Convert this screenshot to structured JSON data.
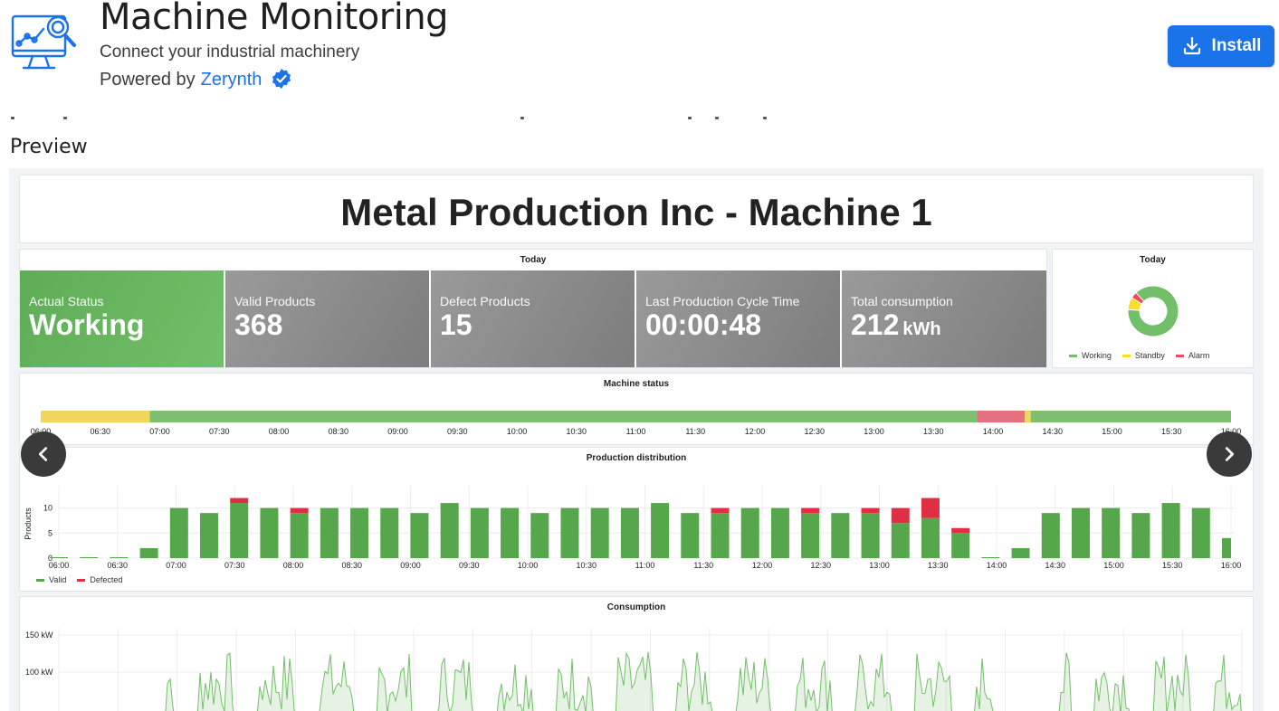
{
  "header": {
    "title": "Machine Monitoring",
    "subtitle": "Connect your industrial machinery",
    "powered_prefix": "Powered by",
    "vendor": "Zerynth",
    "install_label": "Install",
    "accent_color": "#1a73e8"
  },
  "preview_label": "Preview",
  "dashboard": {
    "title": "Metal Production Inc - Machine 1",
    "today_title": "Today",
    "stats": [
      {
        "label": "Actual Status",
        "value": "Working",
        "unit": ""
      },
      {
        "label": "Valid Products",
        "value": "368",
        "unit": ""
      },
      {
        "label": "Defect Products",
        "value": "15",
        "unit": ""
      },
      {
        "label": "Last Production Cycle Time",
        "value": "00:00:48",
        "unit": ""
      },
      {
        "label": "Total consumption",
        "value": "212",
        "unit": "kWh"
      }
    ],
    "pie": {
      "title": "Today",
      "legend": [
        "Working",
        "Standby",
        "Alarm"
      ],
      "colors": [
        "#73bf69",
        "#fade2a",
        "#f2495c"
      ]
    },
    "status_panel_title": "Machine status",
    "production_panel_title": "Production distribution",
    "production_ylabel": "Products",
    "production_legend": [
      "Valid",
      "Defected"
    ],
    "consumption_panel_title": "Consumption"
  },
  "chart_data": [
    {
      "type": "pie",
      "title": "Today",
      "categories": [
        "Working",
        "Standby",
        "Alarm"
      ],
      "values": [
        88,
        8,
        4
      ],
      "colors": [
        "#73bf69",
        "#fade2a",
        "#f2495c"
      ]
    },
    {
      "type": "bar",
      "title": "Machine status",
      "categories": [
        "06:00",
        "06:30",
        "07:00",
        "07:30",
        "08:00",
        "08:30",
        "09:00",
        "09:30",
        "10:00",
        "10:30",
        "11:00",
        "11:30",
        "12:00",
        "12:30",
        "13:00",
        "13:30",
        "14:00",
        "14:30",
        "15:00",
        "15:30",
        "16:00"
      ],
      "segments": [
        {
          "state": "Standby",
          "from": "06:00",
          "to": "06:55",
          "color": "#f2d65b"
        },
        {
          "state": "Working",
          "from": "06:55",
          "to": "13:52",
          "color": "#7fbf72"
        },
        {
          "state": "Alarm",
          "from": "13:52",
          "to": "14:16",
          "color": "#e5707e"
        },
        {
          "state": "Standby",
          "from": "14:16",
          "to": "14:19",
          "color": "#f2d65b"
        },
        {
          "state": "Working",
          "from": "14:19",
          "to": "16:00",
          "color": "#7fbf72"
        }
      ]
    },
    {
      "type": "bar",
      "title": "Production distribution",
      "ylabel": "Products",
      "ylim": [
        0,
        13
      ],
      "yticks": [
        0,
        5,
        10
      ],
      "xticks": [
        "06:00",
        "06:30",
        "07:00",
        "07:30",
        "08:00",
        "08:30",
        "09:00",
        "09:30",
        "10:00",
        "10:30",
        "11:00",
        "11:30",
        "12:00",
        "12:30",
        "13:00",
        "13:30",
        "14:00",
        "14:30",
        "15:00",
        "15:30",
        "16:00"
      ],
      "series": [
        {
          "name": "Valid",
          "color": "#56a64b",
          "values": [
            0,
            0,
            0,
            2,
            10,
            9,
            11,
            10,
            9,
            10,
            10,
            10,
            9,
            11,
            10,
            10,
            9,
            10,
            10,
            10,
            11,
            9,
            9,
            10,
            10,
            9,
            9,
            9,
            7,
            8,
            5,
            0,
            2,
            9,
            10,
            10,
            9,
            11,
            10,
            4
          ]
        },
        {
          "name": "Defected",
          "color": "#e02f44",
          "values": [
            0,
            0,
            0,
            0,
            0,
            0,
            1,
            0,
            1,
            0,
            0,
            0,
            0,
            0,
            0,
            0,
            0,
            0,
            0,
            0,
            0,
            0,
            1,
            0,
            0,
            1,
            0,
            1,
            3,
            4,
            1,
            0,
            0,
            0,
            0,
            0,
            0,
            0,
            0,
            0
          ]
        }
      ]
    },
    {
      "type": "area",
      "title": "Consumption",
      "yticks": [
        "150 kW",
        "100 kW"
      ],
      "color": "#73bf69"
    }
  ]
}
